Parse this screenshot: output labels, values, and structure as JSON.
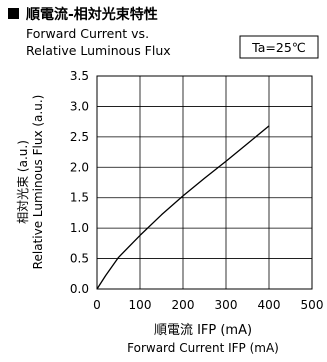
{
  "header": {
    "title_jp": "順電流-相対光束特性",
    "title_en_line1": "Forward Current vs.",
    "title_en_line2": "Relative Luminous Flux",
    "condition": "Ta=25℃"
  },
  "chart_data": {
    "type": "line",
    "title": "順電流-相対光束特性",
    "subtitle": "Forward Current vs. Relative Luminous Flux",
    "condition": "Ta=25℃",
    "xlabel_jp": "順電流 IFP (mA)",
    "xlabel_en": "Forward Current IFP (mA)",
    "ylabel_jp": "相対光束 (a.u.)",
    "ylabel_en": "Relative Luminous Flux (a.u.)",
    "xlim": [
      0,
      500
    ],
    "ylim": [
      0,
      3.5
    ],
    "x_ticks": [
      "0",
      "100",
      "200",
      "300",
      "400",
      "500"
    ],
    "y_ticks": [
      "0.0",
      "0.5",
      "1.0",
      "1.5",
      "2.0",
      "2.5",
      "3.0",
      "3.5"
    ],
    "grid": true,
    "series": [
      {
        "color": "#000000",
        "x": [
          0,
          20,
          50,
          100,
          150,
          200,
          250,
          300,
          350,
          400
        ],
        "y": [
          0,
          0.22,
          0.52,
          0.88,
          1.22,
          1.53,
          1.82,
          2.1,
          2.39,
          2.68
        ]
      }
    ]
  }
}
